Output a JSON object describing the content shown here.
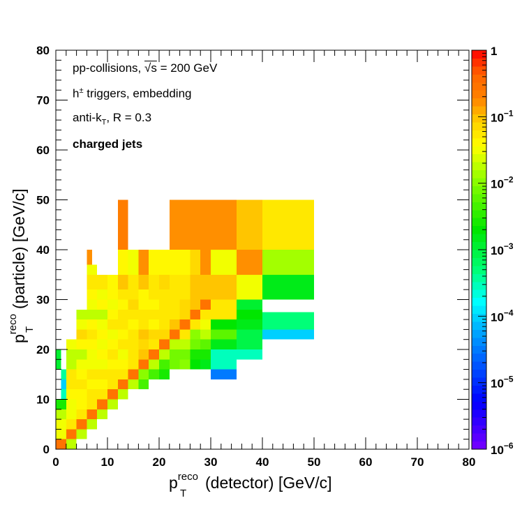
{
  "chart_data": {
    "type": "heatmap",
    "title": "",
    "xlabel": {
      "main": "p",
      "sub": "T",
      "sup": "reco",
      "rest": "(detector) [GeV/c]"
    },
    "ylabel": {
      "main": "p",
      "sub": "T",
      "sup": "reco",
      "rest": "(particle) [GeV/c]"
    },
    "xlim": [
      0,
      80
    ],
    "ylim": [
      0,
      80
    ],
    "x_ticks": [
      "0",
      "10",
      "20",
      "30",
      "40",
      "50",
      "60",
      "70",
      "80"
    ],
    "y_ticks": [
      "0",
      "10",
      "20",
      "30",
      "40",
      "50",
      "60",
      "70",
      "80"
    ],
    "color_scale": "log",
    "zlim": [
      1e-06,
      1
    ],
    "colorbar_ticks": [
      {
        "base": "1",
        "exp": ""
      },
      {
        "base": "10",
        "exp": "−1"
      },
      {
        "base": "10",
        "exp": "−2"
      },
      {
        "base": "10",
        "exp": "−3"
      },
      {
        "base": "10",
        "exp": "−4"
      },
      {
        "base": "10",
        "exp": "−5"
      },
      {
        "base": "10",
        "exp": "−6"
      }
    ],
    "annotations": {
      "line1_prefix": "pp-collisions, ",
      "line1_sqrt": "√s",
      "line1_suffix": " = 200 GeV",
      "line2_main": "h",
      "line2_sup": "±",
      "line2_rest": " triggers, embedding",
      "line3_main": "anti-k",
      "line3_sub": "T",
      "line3_rest": ", R = 0.3",
      "line4": "charged jets"
    },
    "cells": [
      [
        0,
        2,
        0,
        2,
        0.3
      ],
      [
        2,
        4,
        2,
        4,
        0.3
      ],
      [
        4,
        6,
        4,
        6,
        0.3
      ],
      [
        6,
        8,
        6,
        8,
        0.3
      ],
      [
        8,
        10,
        8,
        10,
        0.3
      ],
      [
        10,
        12,
        10,
        12,
        0.3
      ],
      [
        12,
        14,
        12,
        14,
        0.3
      ],
      [
        14,
        16,
        14,
        16,
        0.3
      ],
      [
        16,
        18,
        16,
        18,
        0.3
      ],
      [
        18,
        20,
        18,
        20,
        0.3
      ],
      [
        20,
        22,
        20,
        22,
        0.3
      ],
      [
        22,
        24,
        22,
        24,
        0.3
      ],
      [
        24,
        26,
        24,
        26,
        0.3
      ],
      [
        26,
        28,
        26,
        28,
        0.3
      ],
      [
        28,
        30,
        28,
        30,
        0.3
      ],
      [
        0,
        2,
        2,
        4,
        0.03
      ],
      [
        0,
        2,
        4,
        6,
        0.03
      ],
      [
        0,
        2,
        6,
        8,
        0.02
      ],
      [
        0,
        2,
        8,
        10,
        0.003
      ],
      [
        1,
        2,
        10,
        12,
        0.0003
      ],
      [
        1,
        2,
        12,
        14,
        0.0001
      ],
      [
        1,
        2,
        14,
        16,
        0.0004
      ],
      [
        2,
        4,
        0,
        2,
        0.02
      ],
      [
        2,
        4,
        4,
        6,
        0.05
      ],
      [
        2,
        4,
        6,
        8,
        0.03
      ],
      [
        2,
        4,
        8,
        10,
        0.03
      ],
      [
        2,
        4,
        10,
        12,
        0.04
      ],
      [
        2,
        4,
        12,
        14,
        0.06
      ],
      [
        2,
        4,
        14,
        16,
        0.05
      ],
      [
        2,
        4,
        16,
        18,
        0.02
      ],
      [
        4,
        6,
        2,
        4,
        0.02
      ],
      [
        4,
        6,
        6,
        8,
        0.06
      ],
      [
        4,
        6,
        8,
        10,
        0.04
      ],
      [
        4,
        6,
        10,
        12,
        0.04
      ],
      [
        4,
        6,
        12,
        14,
        0.06
      ],
      [
        4,
        6,
        14,
        16,
        0.04
      ],
      [
        4,
        6,
        16,
        18,
        0.03
      ],
      [
        4,
        6,
        18,
        20,
        0.02
      ],
      [
        4,
        6,
        20,
        22,
        0.04
      ],
      [
        4,
        6,
        22,
        24,
        0.08
      ],
      [
        4,
        6,
        24,
        26,
        0.03
      ],
      [
        4,
        6,
        26,
        28,
        0.02
      ],
      [
        6,
        8,
        4,
        6,
        0.02
      ],
      [
        6,
        8,
        8,
        10,
        0.06
      ],
      [
        6,
        8,
        10,
        12,
        0.05
      ],
      [
        6,
        8,
        12,
        14,
        0.04
      ],
      [
        6,
        8,
        14,
        16,
        0.05
      ],
      [
        6,
        8,
        16,
        18,
        0.03
      ],
      [
        6,
        8,
        18,
        20,
        0.03
      ],
      [
        6,
        8,
        20,
        22,
        0.04
      ],
      [
        6,
        8,
        22,
        24,
        0.05
      ],
      [
        6,
        8,
        24,
        26,
        0.04
      ],
      [
        6,
        8,
        26,
        28,
        0.02
      ],
      [
        6,
        8,
        28,
        30,
        0.03
      ],
      [
        6,
        8,
        30,
        32,
        0.04
      ],
      [
        6,
        8,
        32,
        35,
        0.05
      ],
      [
        6,
        8,
        35,
        37,
        0.03
      ],
      [
        8,
        10,
        6,
        8,
        0.02
      ],
      [
        8,
        10,
        10,
        12,
        0.06
      ],
      [
        8,
        10,
        12,
        14,
        0.04
      ],
      [
        8,
        10,
        14,
        16,
        0.05
      ],
      [
        8,
        10,
        16,
        18,
        0.03
      ],
      [
        8,
        10,
        18,
        20,
        0.04
      ],
      [
        8,
        10,
        20,
        22,
        0.03
      ],
      [
        8,
        10,
        22,
        24,
        0.04
      ],
      [
        8,
        10,
        24,
        26,
        0.03
      ],
      [
        8,
        10,
        26,
        28,
        0.02
      ],
      [
        8,
        10,
        28,
        30,
        0.04
      ],
      [
        8,
        10,
        30,
        32,
        0.03
      ],
      [
        8,
        10,
        32,
        35,
        0.05
      ],
      [
        6,
        7,
        37,
        40,
        0.15
      ],
      [
        10,
        12,
        8,
        10,
        0.02
      ],
      [
        10,
        12,
        12,
        14,
        0.06
      ],
      [
        10,
        12,
        14,
        16,
        0.05
      ],
      [
        10,
        12,
        16,
        18,
        0.04
      ],
      [
        10,
        12,
        18,
        20,
        0.05
      ],
      [
        10,
        12,
        20,
        22,
        0.04
      ],
      [
        10,
        12,
        22,
        24,
        0.03
      ],
      [
        10,
        12,
        24,
        26,
        0.05
      ],
      [
        10,
        12,
        26,
        28,
        0.04
      ],
      [
        10,
        12,
        28,
        30,
        0.03
      ],
      [
        10,
        12,
        30,
        32,
        0.04
      ],
      [
        10,
        12,
        32,
        35,
        0.04
      ],
      [
        12,
        14,
        10,
        12,
        0.02
      ],
      [
        12,
        14,
        14,
        16,
        0.06
      ],
      [
        12,
        14,
        16,
        18,
        0.04
      ],
      [
        12,
        14,
        18,
        20,
        0.03
      ],
      [
        12,
        14,
        20,
        22,
        0.05
      ],
      [
        12,
        14,
        22,
        24,
        0.04
      ],
      [
        12,
        14,
        24,
        26,
        0.05
      ],
      [
        12,
        14,
        26,
        28,
        0.06
      ],
      [
        12,
        14,
        28,
        30,
        0.04
      ],
      [
        12,
        14,
        30,
        32,
        0.05
      ],
      [
        12,
        14,
        32,
        35,
        0.1
      ],
      [
        12,
        14,
        35,
        40,
        0.04
      ],
      [
        12,
        14,
        40,
        50,
        0.2
      ],
      [
        14,
        16,
        12,
        14,
        0.02
      ],
      [
        14,
        16,
        16,
        18,
        0.06
      ],
      [
        14,
        16,
        18,
        20,
        0.05
      ],
      [
        14,
        16,
        20,
        22,
        0.06
      ],
      [
        14,
        16,
        22,
        24,
        0.06
      ],
      [
        14,
        16,
        24,
        26,
        0.04
      ],
      [
        14,
        16,
        26,
        28,
        0.06
      ],
      [
        14,
        16,
        28,
        30,
        0.08
      ],
      [
        14,
        16,
        30,
        32,
        0.06
      ],
      [
        14,
        16,
        32,
        35,
        0.05
      ],
      [
        14,
        16,
        35,
        40,
        0.03
      ],
      [
        16,
        18,
        12,
        14,
        0.004
      ],
      [
        16,
        18,
        14,
        16,
        0.01
      ],
      [
        16,
        18,
        18,
        20,
        0.1
      ],
      [
        16,
        18,
        20,
        22,
        0.08
      ],
      [
        16,
        18,
        22,
        24,
        0.1
      ],
      [
        16,
        18,
        24,
        26,
        0.05
      ],
      [
        16,
        18,
        26,
        28,
        0.05
      ],
      [
        16,
        18,
        28,
        30,
        0.04
      ],
      [
        16,
        18,
        30,
        32,
        0.04
      ],
      [
        16,
        18,
        32,
        35,
        0.1
      ],
      [
        16,
        18,
        35,
        40,
        0.15
      ],
      [
        18,
        20,
        14,
        16,
        0.005
      ],
      [
        18,
        20,
        16,
        18,
        0.02
      ],
      [
        18,
        20,
        20,
        22,
        0.06
      ],
      [
        18,
        20,
        22,
        24,
        0.08
      ],
      [
        18,
        20,
        24,
        26,
        0.04
      ],
      [
        18,
        20,
        26,
        28,
        0.05
      ],
      [
        18,
        20,
        28,
        30,
        0.04
      ],
      [
        18,
        20,
        30,
        32,
        0.05
      ],
      [
        18,
        20,
        32,
        35,
        0.05
      ],
      [
        18,
        20,
        35,
        40,
        0.04
      ],
      [
        20,
        22,
        14,
        16,
        0.003
      ],
      [
        20,
        22,
        16,
        18,
        0.004
      ],
      [
        20,
        22,
        18,
        20,
        0.02
      ],
      [
        20,
        22,
        22,
        24,
        0.08
      ],
      [
        20,
        22,
        24,
        26,
        0.06
      ],
      [
        20,
        22,
        26,
        28,
        0.05
      ],
      [
        20,
        22,
        28,
        30,
        0.05
      ],
      [
        20,
        22,
        30,
        32,
        0.05
      ],
      [
        20,
        22,
        32,
        35,
        0.08
      ],
      [
        20,
        22,
        35,
        40,
        0.04
      ],
      [
        22,
        24,
        16,
        18,
        0.008
      ],
      [
        22,
        24,
        18,
        20,
        0.008
      ],
      [
        22,
        24,
        20,
        22,
        0.02
      ],
      [
        22,
        24,
        24,
        26,
        0.1
      ],
      [
        22,
        24,
        26,
        28,
        0.06
      ],
      [
        22,
        24,
        28,
        30,
        0.06
      ],
      [
        22,
        24,
        30,
        32,
        0.05
      ],
      [
        22,
        24,
        32,
        35,
        0.05
      ],
      [
        22,
        24,
        35,
        40,
        0.04
      ],
      [
        24,
        26,
        16,
        18,
        0.01
      ],
      [
        24,
        26,
        18,
        20,
        0.008
      ],
      [
        24,
        26,
        20,
        22,
        0.02
      ],
      [
        24,
        26,
        22,
        24,
        0.05
      ],
      [
        24,
        26,
        26,
        28,
        0.08
      ],
      [
        24,
        26,
        28,
        30,
        0.08
      ],
      [
        24,
        26,
        30,
        32,
        0.05
      ],
      [
        24,
        26,
        32,
        35,
        0.05
      ],
      [
        24,
        26,
        35,
        40,
        0.04
      ],
      [
        26,
        28,
        16,
        18,
        0.002
      ],
      [
        26,
        28,
        18,
        20,
        0.003
      ],
      [
        26,
        28,
        20,
        22,
        0.008
      ],
      [
        26,
        28,
        22,
        24,
        0.01
      ],
      [
        26,
        28,
        24,
        26,
        0.05
      ],
      [
        26,
        28,
        28,
        30,
        0.1
      ],
      [
        26,
        28,
        30,
        32,
        0.1
      ],
      [
        26,
        28,
        32,
        35,
        0.1
      ],
      [
        26,
        28,
        35,
        40,
        0.08
      ],
      [
        28,
        30,
        16,
        18,
        0.0015
      ],
      [
        28,
        30,
        18,
        20,
        0.003
      ],
      [
        28,
        30,
        20,
        22,
        0.006
      ],
      [
        28,
        30,
        22,
        24,
        0.02
      ],
      [
        28,
        30,
        24,
        26,
        0.03
      ],
      [
        28,
        30,
        26,
        28,
        0.06
      ],
      [
        28,
        30,
        30,
        32,
        0.1
      ],
      [
        28,
        30,
        32,
        35,
        0.1
      ],
      [
        28,
        30,
        35,
        40,
        0.15
      ],
      [
        30,
        35,
        14,
        16,
        3e-05
      ],
      [
        30,
        35,
        16,
        18,
        0.0003
      ],
      [
        30,
        35,
        18,
        20,
        0.0003
      ],
      [
        30,
        35,
        20,
        22,
        0.0015
      ],
      [
        30,
        35,
        22,
        24,
        0.006
      ],
      [
        30,
        35,
        24,
        26,
        0.002
      ],
      [
        30,
        35,
        26,
        28,
        0.05
      ],
      [
        30,
        35,
        28,
        30,
        0.05
      ],
      [
        30,
        35,
        30,
        35,
        0.1
      ],
      [
        30,
        35,
        35,
        40,
        0.03
      ],
      [
        35,
        40,
        18,
        20,
        0.0003
      ],
      [
        35,
        40,
        20,
        22,
        0.0008
      ],
      [
        35,
        40,
        22,
        24,
        0.0008
      ],
      [
        35,
        40,
        24,
        26,
        0.0015
      ],
      [
        35,
        40,
        26,
        28,
        0.002
      ],
      [
        35,
        40,
        28,
        30,
        0.0012
      ],
      [
        35,
        40,
        30,
        35,
        0.03
      ],
      [
        35,
        40,
        35,
        40,
        0.15
      ],
      [
        35,
        40,
        40,
        50,
        0.1
      ],
      [
        40,
        50,
        22,
        24,
        0.0001
      ],
      [
        40,
        50,
        24,
        27.5,
        0.0005
      ],
      [
        40,
        50,
        30,
        35,
        0.0015
      ],
      [
        40,
        50,
        35,
        40,
        0.015
      ],
      [
        40,
        50,
        40,
        50,
        0.05
      ],
      [
        22,
        30,
        40,
        50,
        0.15
      ],
      [
        30,
        35,
        40,
        50,
        0.15
      ],
      [
        2,
        4,
        18,
        20,
        0.02
      ],
      [
        2,
        4,
        20,
        22,
        0.03
      ],
      [
        0,
        1,
        16,
        20,
        0.001
      ]
    ]
  }
}
